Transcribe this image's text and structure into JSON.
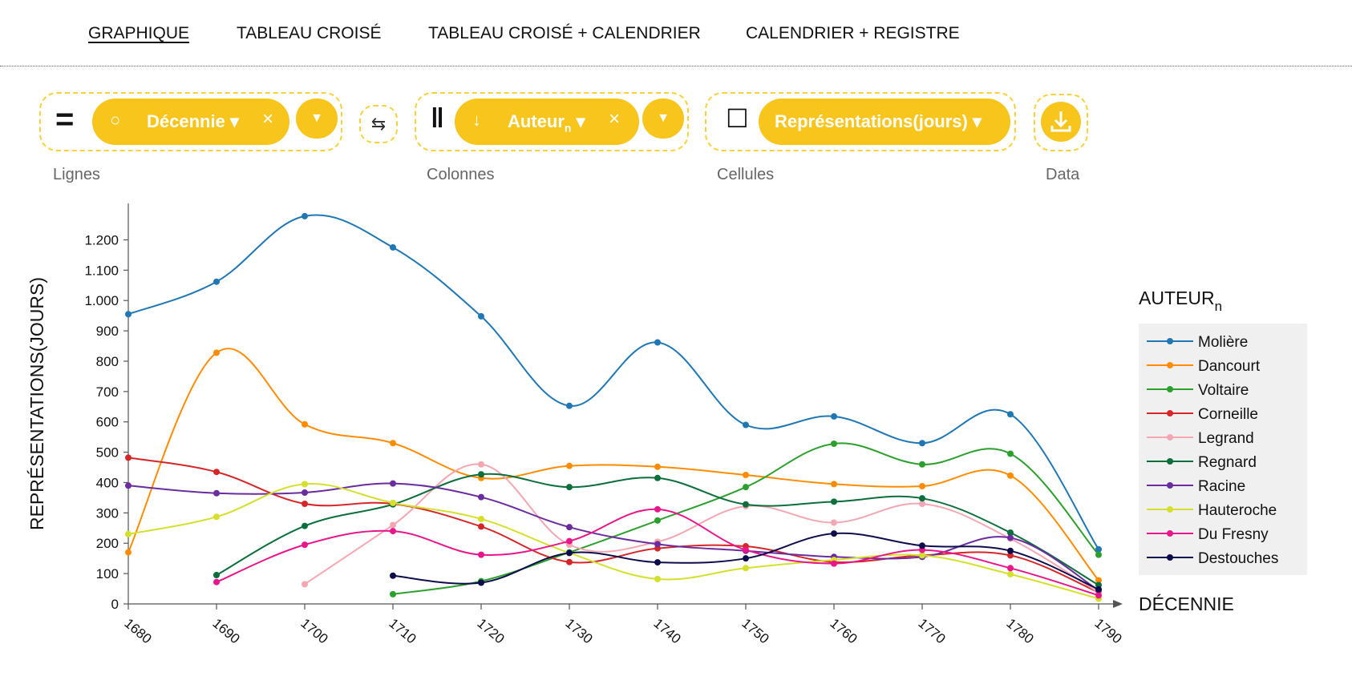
{
  "nav": {
    "tabs": [
      {
        "label": "GRAPHIQUE",
        "active": true
      },
      {
        "label": "TABLEAU CROISÉ",
        "active": false
      },
      {
        "label": "TABLEAU CROISÉ + CALENDRIER",
        "active": false
      },
      {
        "label": "CALENDRIER + REGISTRE",
        "active": false
      }
    ]
  },
  "controls": {
    "lignes": {
      "label": "Lignes",
      "pill": "Décennie ▾",
      "icon": "circle-icon"
    },
    "colonnes": {
      "label": "Colonnes",
      "pill": "Auteur",
      "pill_sub": "n",
      "pill_caret": "▾",
      "icon": "down-arrow-icon"
    },
    "cellules": {
      "label": "Cellules",
      "pill": "Représentations(jours) ▾",
      "icon": "square-icon"
    },
    "data": {
      "label": "Data",
      "icon": "download-icon"
    },
    "remove_glyph": "×",
    "dropdown_glyph": "▼",
    "swap_glyph": "⇆"
  },
  "chart_data": {
    "type": "line",
    "xlabel": "DÉCENNIE",
    "ylabel": "REPRÉSENTATIONS(JOURS)",
    "legend_title": "AUTEUR",
    "legend_title_sub": "n",
    "legend_position": "right",
    "x": [
      1680,
      1690,
      1700,
      1710,
      1720,
      1730,
      1740,
      1750,
      1760,
      1770,
      1780,
      1790
    ],
    "ylim": [
      0,
      1320
    ],
    "yticks": [
      0,
      100,
      200,
      300,
      400,
      500,
      600,
      700,
      800,
      900,
      1000,
      1100,
      1200
    ],
    "ytick_labels": [
      "0",
      "100",
      "200",
      "300",
      "400",
      "500",
      "600",
      "700",
      "800",
      "900",
      "1.000",
      "1.100",
      "1.200"
    ],
    "grid": false,
    "series": [
      {
        "name": "Molière",
        "color": "#1f77b4",
        "values": [
          955,
          1062,
          1278,
          1175,
          948,
          653,
          862,
          590,
          618,
          530,
          625,
          180
        ]
      },
      {
        "name": "Dancourt",
        "color": "#ff8c00",
        "values": [
          170,
          828,
          592,
          530,
          415,
          455,
          452,
          425,
          395,
          388,
          423,
          78
        ]
      },
      {
        "name": "Voltaire",
        "color": "#2ca02c",
        "values": [
          null,
          null,
          null,
          32,
          75,
          170,
          275,
          385,
          528,
          460,
          495,
          162
        ]
      },
      {
        "name": "Corneille",
        "color": "#d62728",
        "values": [
          482,
          435,
          330,
          330,
          255,
          138,
          183,
          190,
          138,
          160,
          160,
          38
        ]
      },
      {
        "name": "Legrand",
        "color": "#f4a6b2",
        "values": [
          null,
          null,
          65,
          260,
          460,
          195,
          205,
          322,
          268,
          330,
          215,
          38
        ]
      },
      {
        "name": "Regnard",
        "color": "#0b6e3b",
        "values": [
          null,
          95,
          257,
          328,
          427,
          385,
          415,
          328,
          337,
          348,
          235,
          62
        ]
      },
      {
        "name": "Racine",
        "color": "#6a2c9e",
        "values": [
          390,
          365,
          367,
          397,
          352,
          253,
          197,
          175,
          155,
          155,
          218,
          45
        ]
      },
      {
        "name": "Hauteroche",
        "color": "#d4e02c",
        "values": [
          230,
          287,
          395,
          333,
          280,
          168,
          82,
          118,
          145,
          160,
          98,
          17
        ]
      },
      {
        "name": "Du Fresny",
        "color": "#e8168a",
        "values": [
          null,
          72,
          195,
          240,
          162,
          207,
          312,
          178,
          133,
          178,
          118,
          28
        ]
      },
      {
        "name": "Destouches",
        "color": "#0d0d4d",
        "values": [
          null,
          null,
          null,
          93,
          70,
          168,
          137,
          150,
          232,
          192,
          175,
          48
        ]
      }
    ]
  }
}
